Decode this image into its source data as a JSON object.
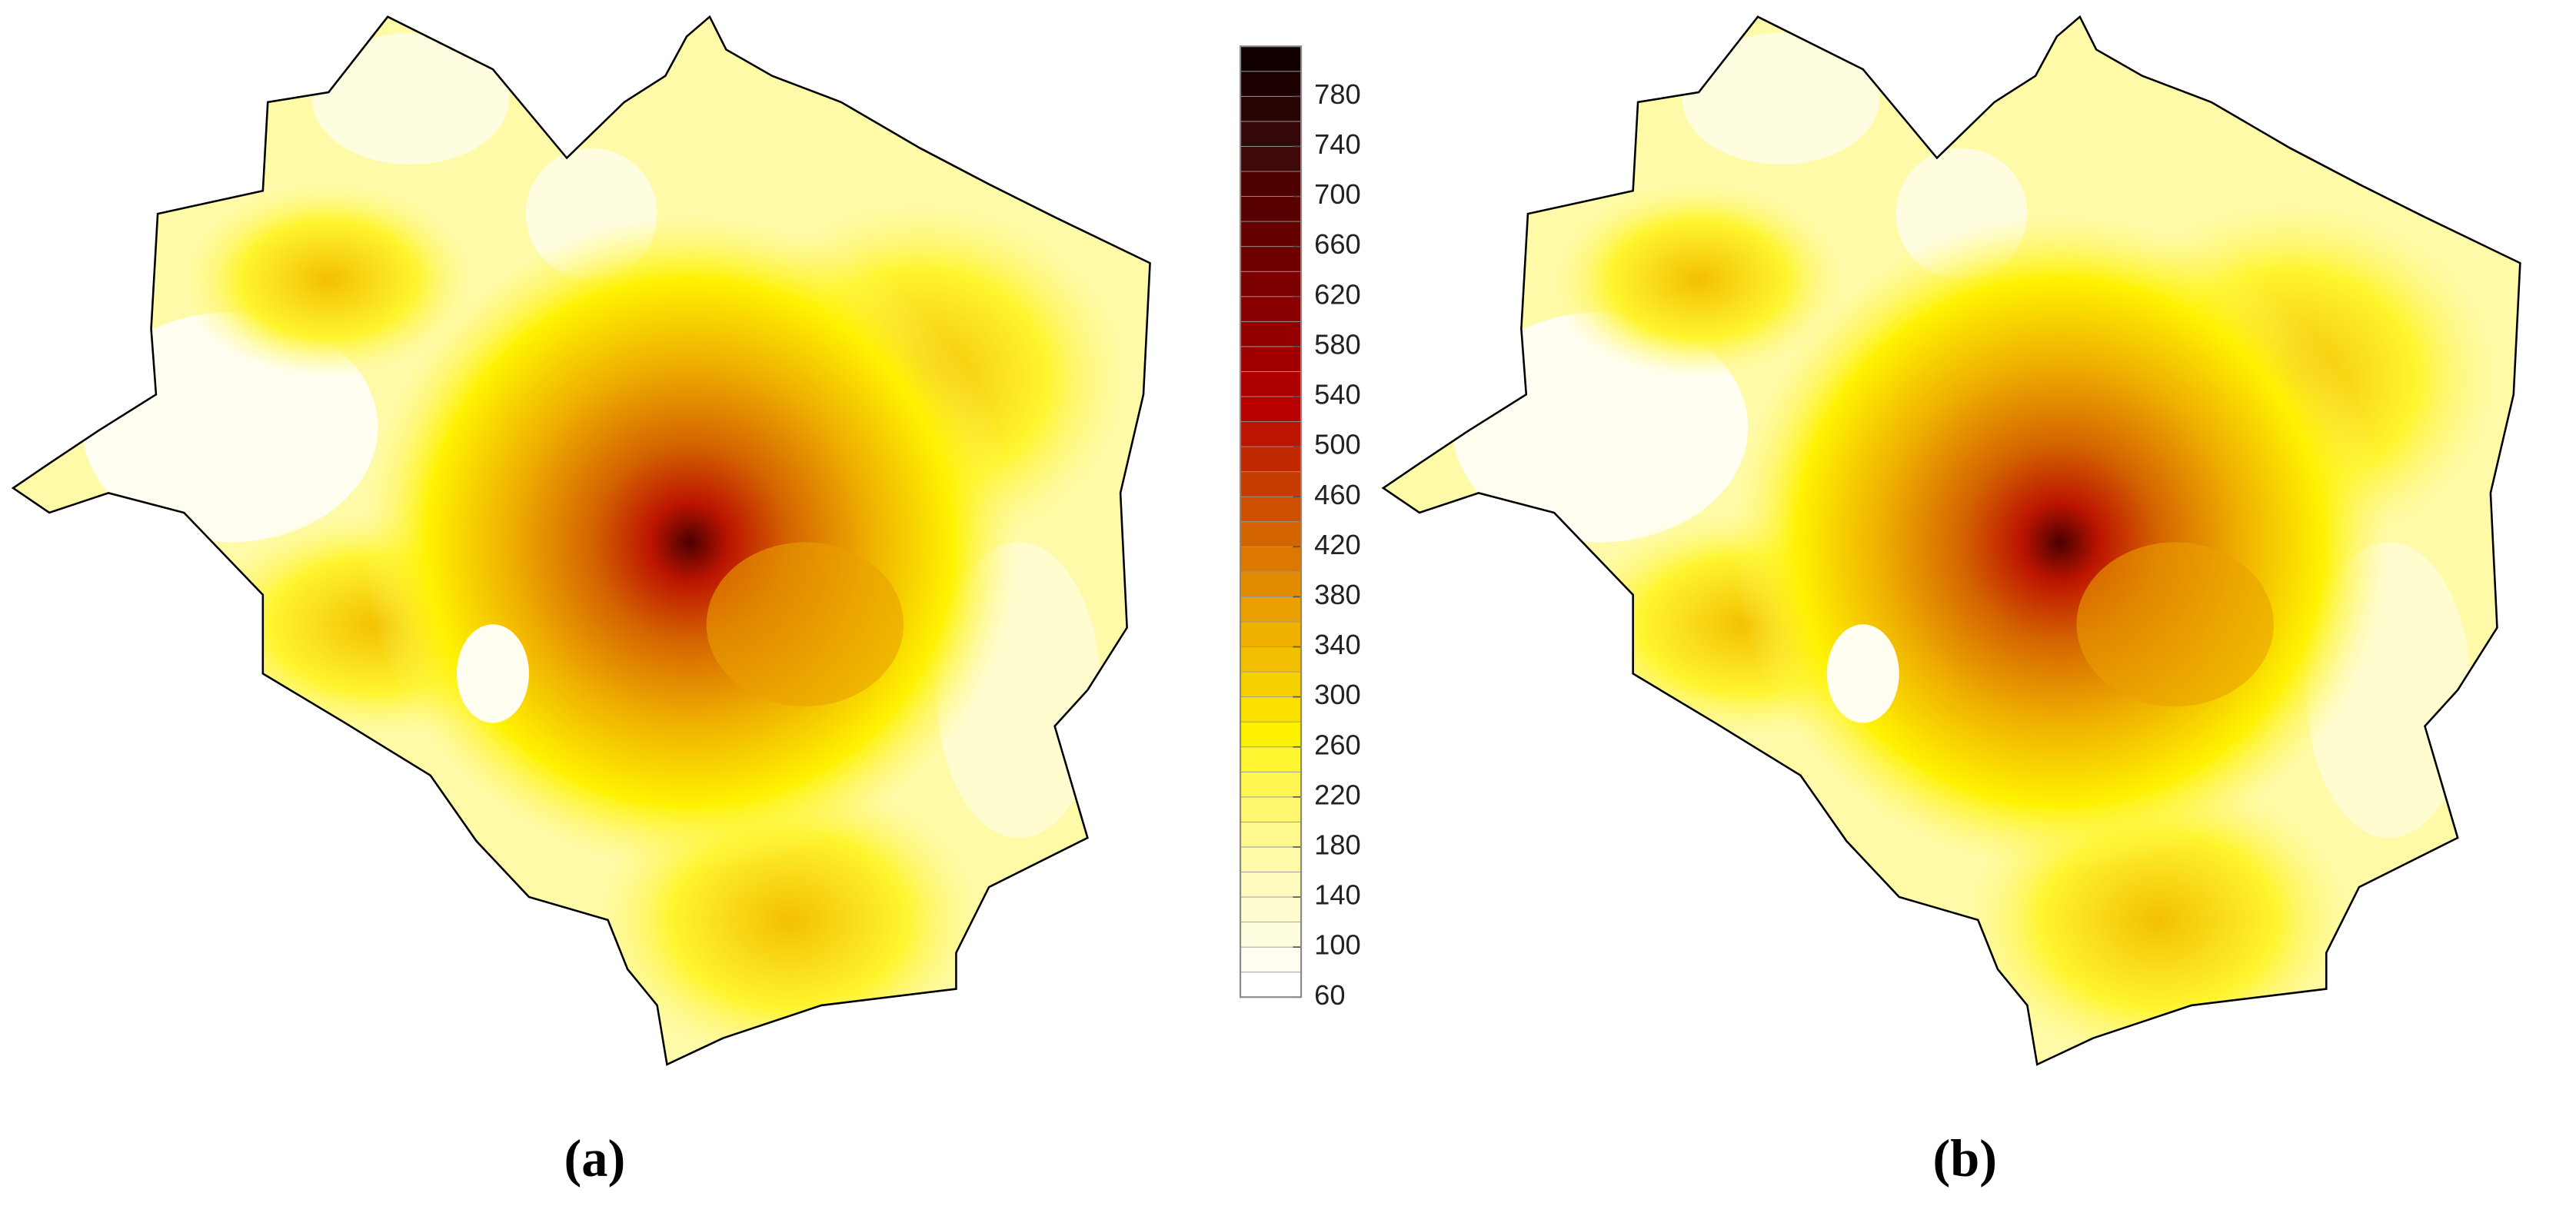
{
  "figure": {
    "panels": [
      {
        "label": "(a)"
      },
      {
        "label": "(b)"
      }
    ],
    "colorbar": {
      "lim": [
        60,
        820
      ],
      "ticks": [
        60,
        100,
        140,
        180,
        220,
        260,
        300,
        340,
        380,
        420,
        460,
        500,
        540,
        580,
        620,
        660,
        700,
        740,
        780
      ],
      "step": 20,
      "colors": [
        "#ffffff",
        "#fffef0",
        "#fffde0",
        "#fffcd0",
        "#fffbbf",
        "#fffaa8",
        "#fff990",
        "#fff870",
        "#fff650",
        "#fff530",
        "#fff200",
        "#fbe000",
        "#f7d000",
        "#f3c000",
        "#efb000",
        "#e9a000",
        "#e38c00",
        "#dc7800",
        "#d46400",
        "#cc5000",
        "#c63c00",
        "#c02800",
        "#bc1400",
        "#b80000",
        "#ac0000",
        "#a00000",
        "#940000",
        "#880000",
        "#7c0000",
        "#700000",
        "#640000",
        "#580000",
        "#4c0000",
        "#400808",
        "#340808",
        "#280404",
        "#1c0000",
        "#100000"
      ]
    }
  }
}
